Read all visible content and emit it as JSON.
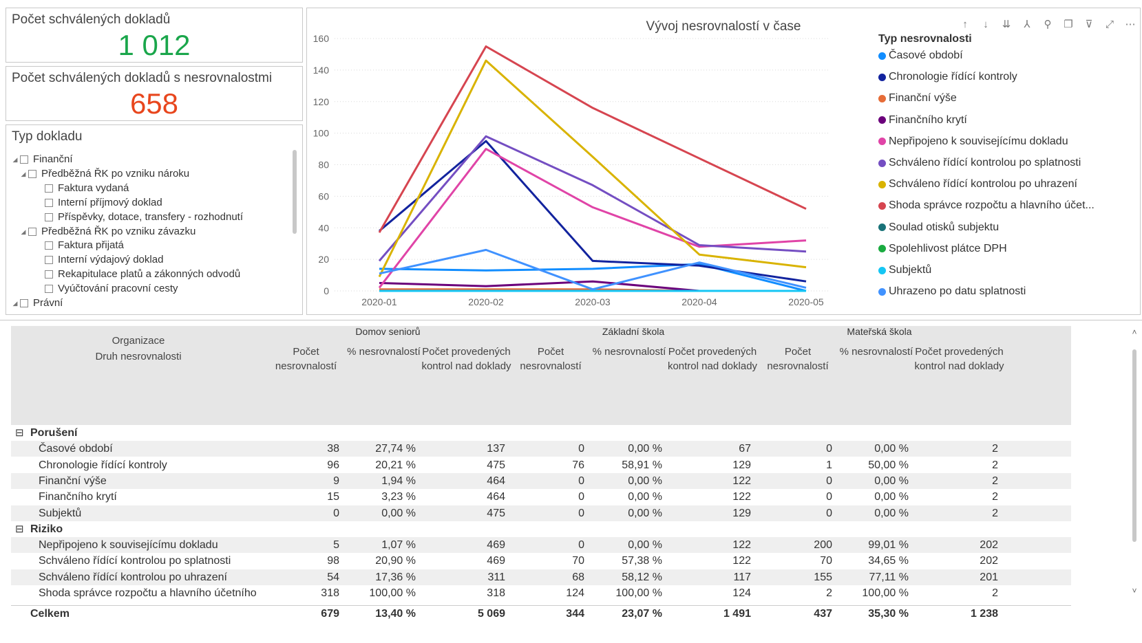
{
  "card1": {
    "title": "Počet schválených dokladů",
    "value": "1 012",
    "color": "#1aa64b"
  },
  "card2": {
    "title": "Počet schválených dokladů s nesrovnalostmi",
    "value": "658",
    "color": "#e8461d"
  },
  "slicer": {
    "title": "Typ dokladu",
    "items": [
      {
        "label": "Finanční",
        "level": 0,
        "expand": "◢"
      },
      {
        "label": "Předběžná ŘK po vzniku nároku",
        "level": 1,
        "expand": "◢"
      },
      {
        "label": "Faktura vydaná",
        "level": 2,
        "expand": ""
      },
      {
        "label": "Interní příjmový doklad",
        "level": 2,
        "expand": ""
      },
      {
        "label": "Příspěvky, dotace, transfery - rozhodnutí",
        "level": 2,
        "expand": ""
      },
      {
        "label": "Předběžná ŘK po vzniku závazku",
        "level": 1,
        "expand": "◢"
      },
      {
        "label": "Faktura přijatá",
        "level": 2,
        "expand": ""
      },
      {
        "label": "Interní výdajový doklad",
        "level": 2,
        "expand": ""
      },
      {
        "label": "Rekapitulace platů a zákonných odvodů",
        "level": 2,
        "expand": ""
      },
      {
        "label": "Vyúčtování pracovní cesty",
        "level": 2,
        "expand": ""
      },
      {
        "label": "Právní",
        "level": 0,
        "expand": "◢"
      }
    ]
  },
  "toolbar_icons": [
    "arrow-up-icon",
    "arrow-down-icon",
    "double-arrow-down-icon",
    "hierarchy-icon",
    "pin-icon",
    "copy-icon",
    "filter-icon",
    "focus-mode-icon",
    "more-options-icon"
  ],
  "toolbar_glyphs": [
    "↑",
    "↓",
    "⇊",
    "⅄",
    "⚲",
    "❐",
    "⊽",
    "⤢",
    "⋯"
  ],
  "chart_data": {
    "type": "line",
    "title": "Vývoj nesrovnalostí v čase",
    "categories": [
      "2020-01",
      "2020-02",
      "2020-03",
      "2020-04",
      "2020-05"
    ],
    "yticks": [
      "0",
      "20",
      "40",
      "60",
      "80",
      "100",
      "120",
      "140",
      "160"
    ],
    "ylim": [
      0,
      160
    ],
    "grid": true,
    "legend_title": "Typ nesrovnalosti",
    "legend_position": "right",
    "series": [
      {
        "name": "Časové období",
        "color": "#118dff",
        "values": [
          14,
          13,
          14,
          17,
          0
        ]
      },
      {
        "name": "Chronologie řídící kontroly",
        "color": "#12239e",
        "values": [
          38,
          95,
          19,
          16,
          6
        ]
      },
      {
        "name": "Finanční výše",
        "color": "#e66c37",
        "values": [
          1,
          1,
          1,
          0,
          0
        ]
      },
      {
        "name": "Finančního krytí",
        "color": "#6b007b",
        "values": [
          5,
          3,
          6,
          0,
          0
        ]
      },
      {
        "name": "Nepřipojeno k souvisejícímu dokladu",
        "color": "#e044a7",
        "values": [
          2,
          90,
          53,
          28,
          32
        ]
      },
      {
        "name": "Schváleno řídící kontrolou po splatnosti",
        "color": "#744ec2",
        "values": [
          19,
          98,
          67,
          29,
          25
        ]
      },
      {
        "name": "Schváleno řídící kontrolou po uhrazení",
        "color": "#d9b300",
        "values": [
          9,
          146,
          85,
          23,
          15
        ]
      },
      {
        "name": "Shoda správce rozpočtu a hlavního účet...",
        "color": "#d64550",
        "values": [
          37,
          155,
          116,
          84,
          52
        ]
      },
      {
        "name": "Soulad otisků subjektu",
        "color": "#197278",
        "values": [
          0,
          0,
          0,
          0,
          0
        ]
      },
      {
        "name": "Spolehlivost plátce DPH",
        "color": "#1aab40",
        "values": [
          0,
          0,
          0,
          0,
          0
        ]
      },
      {
        "name": "Subjektů",
        "color": "#15c6f4",
        "values": [
          0,
          0,
          0,
          0,
          0
        ]
      },
      {
        "name": "Uhrazeno po datu splatnosti",
        "color": "#4092ff",
        "values": [
          11,
          26,
          1,
          18,
          2
        ]
      }
    ]
  },
  "matrix": {
    "row_header_1": "Organizace",
    "row_header_2": "Druh nesrovnalosti",
    "groups": [
      "Domov seniorů",
      "Základní škola",
      "Mateřská škola"
    ],
    "measures": [
      "Počet nesrovnalostí",
      "% nesrovnalostí",
      "Počet provedených kontrol nad doklady"
    ],
    "rows": [
      {
        "type": "cat",
        "label": "Porušení",
        "toggle": "⊟"
      },
      {
        "type": "row",
        "label": "Časové období",
        "v": [
          "38",
          "27,74 %",
          "137",
          "0",
          "0,00 %",
          "67",
          "0",
          "0,00 %",
          "2"
        ]
      },
      {
        "type": "row",
        "label": "Chronologie řídící kontroly",
        "v": [
          "96",
          "20,21 %",
          "475",
          "76",
          "58,91 %",
          "129",
          "1",
          "50,00 %",
          "2"
        ]
      },
      {
        "type": "row",
        "label": "Finanční výše",
        "v": [
          "9",
          "1,94 %",
          "464",
          "0",
          "0,00 %",
          "122",
          "0",
          "0,00 %",
          "2"
        ]
      },
      {
        "type": "row",
        "label": "Finančního krytí",
        "v": [
          "15",
          "3,23 %",
          "464",
          "0",
          "0,00 %",
          "122",
          "0",
          "0,00 %",
          "2"
        ]
      },
      {
        "type": "row",
        "label": "Subjektů",
        "v": [
          "0",
          "0,00 %",
          "475",
          "0",
          "0,00 %",
          "129",
          "0",
          "0,00 %",
          "2"
        ]
      },
      {
        "type": "cat",
        "label": "Riziko",
        "toggle": "⊟"
      },
      {
        "type": "row",
        "label": "Nepřipojeno k souvisejícímu dokladu",
        "v": [
          "5",
          "1,07 %",
          "469",
          "0",
          "0,00 %",
          "122",
          "200",
          "99,01 %",
          "202"
        ]
      },
      {
        "type": "row",
        "label": "Schváleno řídící kontrolou po splatnosti",
        "v": [
          "98",
          "20,90 %",
          "469",
          "70",
          "57,38 %",
          "122",
          "70",
          "34,65 %",
          "202"
        ]
      },
      {
        "type": "row",
        "label": "Schváleno řídící kontrolou po uhrazení",
        "v": [
          "54",
          "17,36 %",
          "311",
          "68",
          "58,12 %",
          "117",
          "155",
          "77,11 %",
          "201"
        ]
      },
      {
        "type": "row",
        "label": "Shoda správce rozpočtu a hlavního účetního",
        "v": [
          "318",
          "100,00 %",
          "318",
          "124",
          "100,00 %",
          "124",
          "2",
          "100,00 %",
          "2"
        ]
      }
    ],
    "total": {
      "label": "Celkem",
      "v": [
        "679",
        "13,40 %",
        "5 069",
        "344",
        "23,07 %",
        "1 491",
        "437",
        "35,30 %",
        "1 238"
      ]
    },
    "scroll_up": "˄",
    "scroll_down": "˅"
  }
}
